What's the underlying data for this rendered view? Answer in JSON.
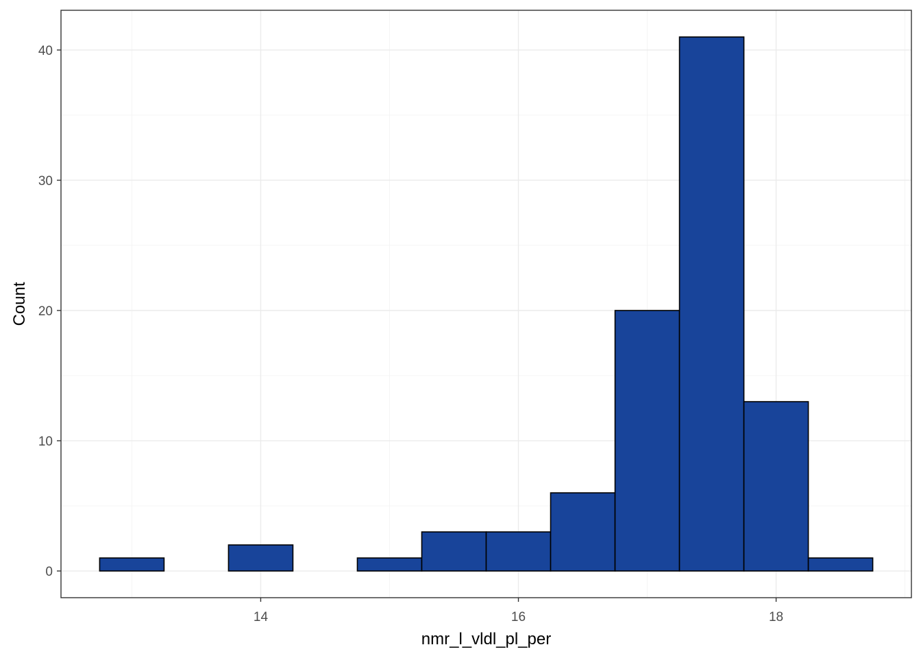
{
  "chart_data": {
    "type": "bar",
    "subtype": "histogram",
    "xlabel": "nmr_l_vldl_pl_per",
    "ylabel": "Count",
    "bin_width": 0.5,
    "bins": [
      {
        "x_start": 12.75,
        "x_end": 13.25,
        "count": 1
      },
      {
        "x_start": 13.25,
        "x_end": 13.75,
        "count": 0
      },
      {
        "x_start": 13.75,
        "x_end": 14.25,
        "count": 2
      },
      {
        "x_start": 14.25,
        "x_end": 14.75,
        "count": 0
      },
      {
        "x_start": 14.75,
        "x_end": 15.25,
        "count": 1
      },
      {
        "x_start": 15.25,
        "x_end": 15.75,
        "count": 3
      },
      {
        "x_start": 15.75,
        "x_end": 16.25,
        "count": 3
      },
      {
        "x_start": 16.25,
        "x_end": 16.75,
        "count": 6
      },
      {
        "x_start": 16.75,
        "x_end": 17.25,
        "count": 20
      },
      {
        "x_start": 17.25,
        "x_end": 17.75,
        "count": 41
      },
      {
        "x_start": 17.75,
        "x_end": 18.25,
        "count": 13
      },
      {
        "x_start": 18.25,
        "x_end": 18.75,
        "count": 1
      }
    ],
    "xlim": [
      12.45,
      19.05
    ],
    "ylim": [
      -2.05,
      43.05
    ],
    "x_ticks": [
      14,
      16,
      18
    ],
    "x_tick_labels": [
      "14",
      "16",
      "18"
    ],
    "x_minor_ticks": [
      13,
      15,
      17,
      19
    ],
    "y_ticks": [
      0,
      10,
      20,
      30,
      40
    ],
    "y_tick_labels": [
      "0",
      "10",
      "20",
      "30",
      "40"
    ],
    "y_minor_ticks": [
      5,
      15,
      25,
      35
    ],
    "grid": true,
    "legend": "none",
    "colors": {
      "bar_fill": "#18449a",
      "bar_outline": "#000000",
      "panel_border": "#333333",
      "grid": "#ebebeb",
      "background": "#ffffff"
    }
  }
}
